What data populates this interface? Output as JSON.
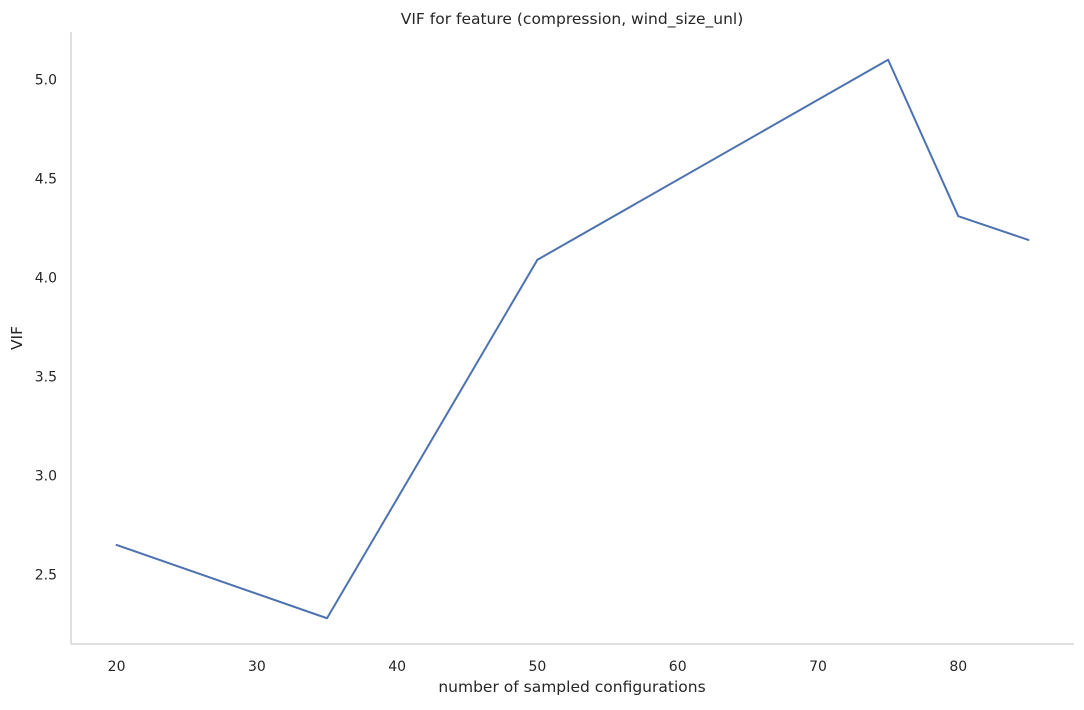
{
  "chart_data": {
    "type": "line",
    "title": "VIF for feature (compression, wind_size_unl)",
    "xlabel": "number of sampled configurations",
    "ylabel": "VIF",
    "x": [
      20,
      35,
      50,
      75,
      80,
      85
    ],
    "series": [
      {
        "values": [
          2.65,
          2.28,
          4.09,
          5.1,
          4.31,
          4.19
        ],
        "color": "#4c72b0"
      }
    ],
    "xlim": [
      16.75,
      88.25
    ],
    "ylim": [
      2.15,
      5.24
    ],
    "xticks": [
      20,
      30,
      40,
      50,
      60,
      70,
      80
    ],
    "xtick_labels": [
      "20",
      "30",
      "40",
      "50",
      "60",
      "70",
      "80"
    ],
    "yticks": [
      2.5,
      3.0,
      3.5,
      4.0,
      4.5,
      5.0
    ],
    "ytick_labels": [
      "2.5",
      "3.0",
      "3.5",
      "4.0",
      "4.5",
      "5.0"
    ],
    "grid": false,
    "spines": "left-bottom"
  }
}
